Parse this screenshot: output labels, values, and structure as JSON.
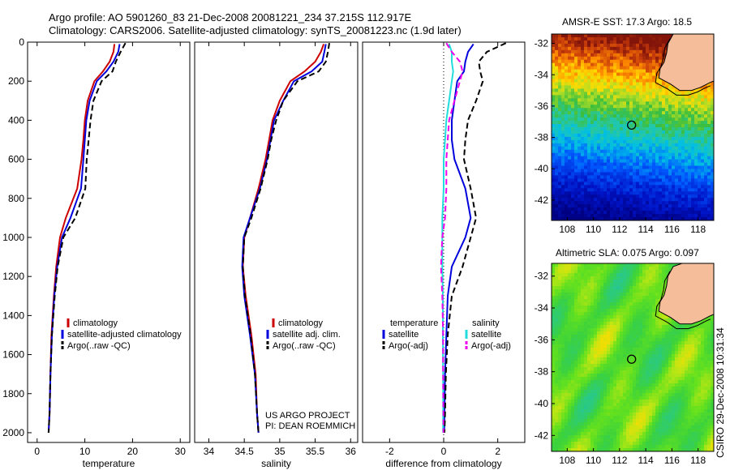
{
  "titles": {
    "line1": "Argo profile: AO 5901260_83 21-Dec-2008 20081221_234 37.215S 112.917E",
    "line2": "Climatology: CARS2006. Satellite-adjusted climatology: synTS_20081223.nc (1.9d later)"
  },
  "stamp": "CSIRO 29-Dec-2008 10:31:34",
  "credits": {
    "project": "US ARGO PROJECT",
    "pi": "PI: DEAN ROEMMICH"
  },
  "colors": {
    "climatology": "#cc0000",
    "satellite": "#0000dd",
    "argo": "#000000",
    "salinity_satellite": "#22dddd",
    "salinity_argo": "#ee00ee",
    "land": "#f5bd9a"
  },
  "chart_data": [
    {
      "type": "line",
      "xlabel": "temperature",
      "ylabel": "",
      "xlim": [
        -2,
        32
      ],
      "ylim": [
        2050,
        0
      ],
      "xticks": [
        0,
        10,
        20,
        30
      ],
      "yticks": [
        0,
        200,
        400,
        600,
        800,
        1000,
        1200,
        1400,
        1600,
        1800,
        2000
      ],
      "legend": [
        "climatology",
        "satellite-adjusted climatology",
        "Argo(..raw -QC)"
      ],
      "series": [
        {
          "name": "climatology",
          "style": "solid",
          "color": "#cc0000",
          "x": [
            16.2,
            16.0,
            15.2,
            13.8,
            12.0,
            10.6,
            10.0,
            9.7,
            9.3,
            8.4,
            6.0,
            4.8,
            4.0,
            3.5,
            3.0,
            2.8,
            2.6,
            2.4
          ],
          "y": [
            10,
            50,
            100,
            150,
            200,
            300,
            400,
            500,
            600,
            750,
            900,
            1000,
            1150,
            1300,
            1500,
            1700,
            1900,
            2000
          ]
        },
        {
          "name": "satellite-adjusted climatology",
          "style": "solid",
          "color": "#0000dd",
          "x": [
            17.3,
            17.0,
            16.0,
            14.5,
            12.5,
            11.0,
            10.3,
            10.0,
            9.7,
            9.2,
            7.0,
            5.2,
            4.2,
            3.6,
            3.1,
            2.8,
            2.6,
            2.4
          ],
          "y": [
            10,
            50,
            100,
            150,
            200,
            300,
            400,
            500,
            600,
            750,
            900,
            1000,
            1150,
            1300,
            1500,
            1700,
            1900,
            2000
          ]
        },
        {
          "name": "Argo(..raw -QC)",
          "style": "dashed",
          "color": "#000000",
          "x": [
            18.5,
            17.5,
            16.5,
            15.8,
            13.5,
            11.8,
            11.2,
            10.8,
            10.4,
            10.1,
            8.0,
            5.5,
            4.3,
            3.7,
            3.1,
            2.8,
            2.6,
            2.4
          ],
          "y": [
            5,
            50,
            100,
            150,
            200,
            300,
            400,
            500,
            600,
            750,
            900,
            1000,
            1150,
            1300,
            1500,
            1700,
            1900,
            2000
          ]
        }
      ]
    },
    {
      "type": "line",
      "xlabel": "salinity",
      "ylabel": "",
      "xlim": [
        33.8,
        36.1
      ],
      "ylim": [
        2050,
        0
      ],
      "xticks": [
        34,
        34.5,
        35,
        35.5,
        36
      ],
      "yticks": [],
      "legend": [
        "climatology",
        "satellite adj. clim.",
        "Argo(..raw -QC)"
      ],
      "series": [
        {
          "name": "climatology",
          "style": "solid",
          "color": "#cc0000",
          "x": [
            35.62,
            35.58,
            35.5,
            35.35,
            35.15,
            35.0,
            34.9,
            34.85,
            34.8,
            34.7,
            34.58,
            34.5,
            34.48,
            34.52,
            34.6,
            34.66,
            34.68,
            34.7
          ],
          "y": [
            10,
            50,
            100,
            150,
            200,
            300,
            400,
            500,
            600,
            750,
            900,
            1000,
            1150,
            1300,
            1500,
            1700,
            1900,
            2000
          ]
        },
        {
          "name": "satellite adj. clim.",
          "style": "solid",
          "color": "#0000dd",
          "x": [
            35.65,
            35.63,
            35.6,
            35.45,
            35.2,
            35.05,
            34.92,
            34.87,
            34.82,
            34.72,
            34.58,
            34.49,
            34.47,
            34.5,
            34.58,
            34.65,
            34.68,
            34.7
          ],
          "y": [
            10,
            50,
            100,
            150,
            200,
            300,
            400,
            500,
            600,
            750,
            900,
            1000,
            1150,
            1300,
            1500,
            1700,
            1900,
            2000
          ]
        },
        {
          "name": "Argo(..raw -QC)",
          "style": "dashed",
          "color": "#000000",
          "x": [
            35.7,
            35.68,
            35.65,
            35.55,
            35.25,
            35.05,
            34.95,
            34.88,
            34.83,
            34.73,
            34.6,
            34.5,
            34.48,
            34.51,
            34.59,
            34.65,
            34.68,
            34.7
          ],
          "y": [
            5,
            50,
            100,
            150,
            200,
            300,
            400,
            500,
            600,
            750,
            900,
            1000,
            1150,
            1300,
            1500,
            1700,
            1900,
            2000
          ]
        }
      ]
    },
    {
      "type": "line",
      "xlabel": "difference from climatology",
      "ylabel": "",
      "xlim": [
        -3,
        3
      ],
      "ylim": [
        2050,
        0
      ],
      "xticks": [
        -2,
        0,
        2
      ],
      "yticks": [],
      "legend": [
        "temperature",
        "satellite",
        "Argo(-adj)",
        "salinity",
        "satellite",
        "Argo(-adj)"
      ],
      "series": [
        {
          "name": "temperature satellite",
          "style": "solid",
          "color": "#0000dd",
          "x": [
            1.1,
            0.9,
            0.8,
            0.75,
            0.5,
            0.4,
            0.3,
            0.3,
            0.4,
            0.8,
            1.0,
            0.8,
            0.3,
            0.15,
            0.1,
            0.05,
            0.03,
            0.02
          ],
          "y": [
            10,
            50,
            100,
            150,
            200,
            300,
            400,
            500,
            600,
            750,
            900,
            1000,
            1150,
            1300,
            1500,
            1700,
            1900,
            2000
          ]
        },
        {
          "name": "temperature Argo(-adj)",
          "style": "dashed",
          "color": "#000000",
          "x": [
            2.3,
            1.6,
            1.3,
            1.35,
            1.45,
            1.2,
            0.9,
            0.8,
            0.75,
            1.0,
            1.2,
            1.0,
            0.7,
            0.3,
            0.15,
            0.08,
            0.05,
            0.03
          ],
          "y": [
            5,
            50,
            100,
            150,
            200,
            300,
            400,
            500,
            600,
            750,
            900,
            1000,
            1150,
            1300,
            1500,
            1700,
            1900,
            2000
          ]
        },
        {
          "name": "salinity satellite",
          "style": "solid",
          "color": "#22dddd",
          "x": [
            0.2,
            0.3,
            0.3,
            0.35,
            0.3,
            0.2,
            0.1,
            0.05,
            0.0,
            0.0,
            -0.05,
            -0.05,
            -0.05,
            -0.03,
            -0.03,
            -0.02,
            -0.02,
            -0.02
          ],
          "y": [
            10,
            50,
            100,
            150,
            200,
            300,
            400,
            500,
            600,
            750,
            900,
            1000,
            1150,
            1300,
            1500,
            1700,
            1900,
            2000
          ]
        },
        {
          "name": "salinity Argo(-adj)",
          "style": "dashed",
          "color": "#ee00ee",
          "x": [
            0.1,
            0.3,
            0.6,
            0.7,
            0.6,
            0.4,
            0.2,
            0.15,
            0.1,
            0.1,
            0.05,
            -0.05,
            -0.1,
            -0.05,
            -0.02,
            -0.02,
            -0.01,
            -0.01
          ],
          "y": [
            5,
            50,
            100,
            150,
            200,
            300,
            400,
            500,
            600,
            750,
            900,
            1000,
            1150,
            1300,
            1500,
            1700,
            1900,
            2000
          ]
        }
      ]
    },
    {
      "type": "heatmap",
      "title": "AMSR-E SST: 17.3 Argo: 18.5",
      "xlim": [
        106.8,
        119.2
      ],
      "ylim": [
        -43.3,
        -31.4
      ],
      "xticks": [
        108,
        110,
        112,
        114,
        116,
        118
      ],
      "yticks": [
        -32,
        -34,
        -36,
        -38,
        -40,
        -42
      ],
      "marker": {
        "lon": 112.917,
        "lat": -37.215
      },
      "field": "sst"
    },
    {
      "type": "heatmap",
      "title": "Altimetric SLA: 0.075 Argo: 0.097",
      "xlim": [
        106.8,
        119.2
      ],
      "ylim": [
        -43.0,
        -31.2
      ],
      "xticks": [
        108,
        110,
        112,
        114,
        116,
        118
      ],
      "yticks": [
        -32,
        -34,
        -36,
        -38,
        -40,
        -42
      ],
      "marker": {
        "lon": 112.917,
        "lat": -37.215
      },
      "field": "sla"
    }
  ]
}
